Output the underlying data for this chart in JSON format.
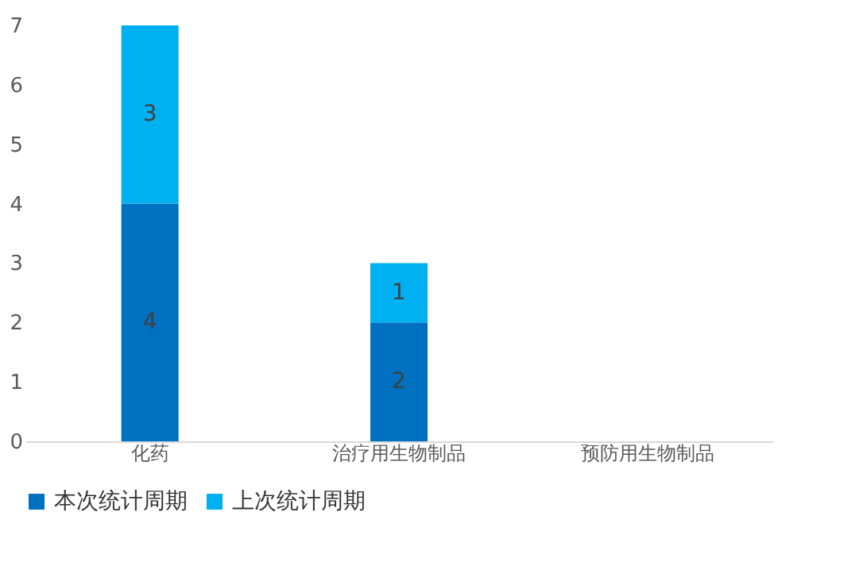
{
  "chart_data": {
    "type": "bar",
    "stacked": true,
    "categories": [
      "化药",
      "治疗用生物制品",
      "预防用生物制品"
    ],
    "series": [
      {
        "name": "本次统计周期",
        "color": "#0070c0",
        "values": [
          4,
          2,
          null
        ]
      },
      {
        "name": "上次统计周期",
        "color": "#00b0f0",
        "values": [
          3,
          1,
          null
        ]
      }
    ],
    "ylim": [
      0,
      7
    ],
    "yticks": [
      0,
      1,
      2,
      3,
      4,
      5,
      6,
      7
    ],
    "grid": false,
    "legend": "bottom",
    "data_labels": true
  }
}
